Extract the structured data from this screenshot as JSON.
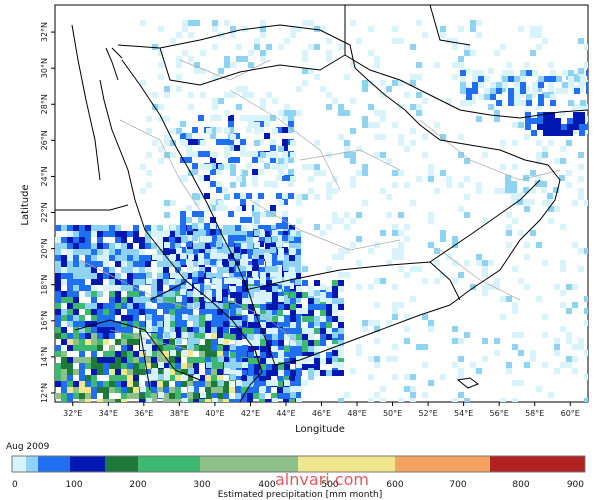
{
  "map": {
    "title_date": "Aug 2009",
    "x_axis_label": "Longitude",
    "y_axis_label": "Latitude",
    "x_ticks": [
      "32°E",
      "34°E",
      "36°E",
      "38°E",
      "40°E",
      "42°E",
      "44°E",
      "46°E",
      "48°E",
      "50°E",
      "52°E",
      "54°E",
      "56°E",
      "58°E",
      "60°E"
    ],
    "y_ticks": [
      "12°N",
      "14°N",
      "16°N",
      "18°N",
      "20°N",
      "22°N",
      "24°N",
      "26°N",
      "28°N",
      "30°N",
      "32°N"
    ],
    "lon_range": [
      31,
      61
    ],
    "lat_range": [
      11.5,
      33.5
    ],
    "colors": {
      "border": "#000000",
      "admin": "#a8a8a8",
      "ocean": "#ffffff"
    }
  },
  "colorbar": {
    "label": "Estimated precipitation [mm month]",
    "tick_labels": [
      "0",
      "100",
      "200",
      "300",
      "400",
      "500",
      "600",
      "700",
      "800",
      "900"
    ],
    "bins": [
      {
        "color": "#d8f3fb"
      },
      {
        "color": "#8fd3f2"
      },
      {
        "color": "#1f6ff0"
      },
      {
        "color": "#0018b0"
      },
      {
        "color": "#1f7a3a"
      },
      {
        "color": "#3db870"
      },
      {
        "color": "#8fbf8a"
      },
      {
        "color": "#f0e68c"
      },
      {
        "color": "#f4a460"
      },
      {
        "color": "#b22222"
      }
    ]
  },
  "watermark": "alnvari.com"
}
